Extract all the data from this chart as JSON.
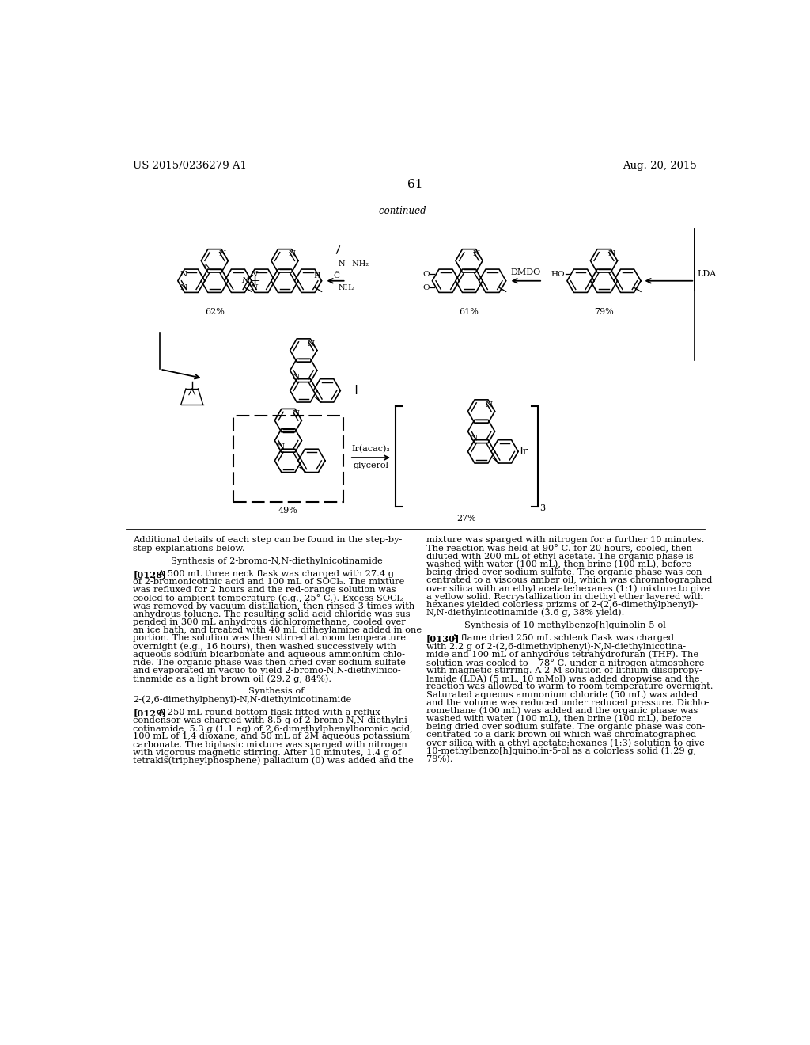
{
  "page_header_left": "US 2015/0236279 A1",
  "page_header_right": "Aug. 20, 2015",
  "page_number": "61",
  "continued_label": "-continued",
  "bg_color": "#ffffff",
  "text_color": "#000000",
  "body_text_left_col": [
    "Additional details of each step can be found in the step-by-",
    "step explanations below.",
    "",
    "Synthesis of 2-bromo-N,N-diethylnicotinamide",
    "",
    "[0128]   A 500 mL three neck flask was charged with 27.4 g",
    "of 2-bromonicotinic acid and 100 mL of SOCl₂. The mixture",
    "was refluxed for 2 hours and the red-orange solution was",
    "cooled to ambient temperature (e.g., 25° C.). Excess SOCl₂",
    "was removed by vacuum distillation, then rinsed 3 times with",
    "anhydrous toluene. The resulting solid acid chloride was sus-",
    "pended in 300 mL anhydrous dichloromethane, cooled over",
    "an ice bath, and treated with 40 mL ditheylamine added in one",
    "portion. The solution was then stirred at room temperature",
    "overnight (e.g., 16 hours), then washed successively with",
    "aqueous sodium bicarbonate and aqueous ammonium chlo-",
    "ride. The organic phase was then dried over sodium sulfate",
    "and evaporated in vacuo to yield 2-bromo-N,N-diethylnico-",
    "tinamide as a light brown oil (29.2 g, 84%).",
    "",
    "Synthesis of",
    "2-(2,6-dimethylphenyl)-N,N-diethylnicotinamide",
    "",
    "[0129]   A 250 mL round bottom flask fitted with a reflux",
    "condensor was charged with 8.5 g of 2-bromo-N,N-diethylni-",
    "cotinamide, 5.3 g (1.1 eq) of 2,6-dimethylphenylboronic acid,",
    "100 mL of 1,4 dioxane, and 50 mL of 2M aqueous potassium",
    "carbonate. The biphasic mixture was sparged with nitrogen",
    "with vigorous magnetic stirring. After 10 minutes, 1.4 g of",
    "tetrakis(tripheylphosphene) palladium (0) was added and the"
  ],
  "body_text_right_col": [
    "mixture was sparged with nitrogen for a further 10 minutes.",
    "The reaction was held at 90° C. for 20 hours, cooled, then",
    "diluted with 200 mL of ethyl acetate. The organic phase is",
    "washed with water (100 mL), then brine (100 mL), before",
    "being dried over sodium sulfate. The organic phase was con-",
    "centrated to a viscous amber oil, which was chromatographed",
    "over silica with an ethyl acetate:hexanes (1:1) mixture to give",
    "a yellow solid. Recrystallization in diethyl ether layered with",
    "hexanes yielded colorless prizms of 2-(2,6-dimethylphenyl)-",
    "N,N-diethylnicotinamide (3.6 g, 38% yield).",
    "",
    "Synthesis of 10-methylbenzo[h]quinolin-5-ol",
    "",
    "[0130]   A flame dried 250 mL schlenk flask was charged",
    "with 2.2 g of 2-(2,6-dimethylphenyl)-N,N-diethylnicotina-",
    "mide and 100 mL of anhydrous tetrahydrofuran (THF). The",
    "solution was cooled to −78° C. under a nitrogen atmosphere",
    "with magnetic stirring. A 2 M solution of lithium diisopropy-",
    "lamide (LDA) (5 mL, 10 mMol) was added dropwise and the",
    "reaction was allowed to warm to room temperature overnight.",
    "Saturated aqueous ammonium chloride (50 mL) was added",
    "and the volume was reduced under reduced pressure. Dichlo-",
    "romethane (100 mL) was added and the organic phase was",
    "washed with water (100 mL), then brine (100 mL), before",
    "being dried over sodium sulfate. The organic phase was con-",
    "centrated to a dark brown oil which was chromatographed",
    "over silica with a ethyl acetate:hexanes (1:3) solution to give",
    "10-methylbenzo[h]quinolin-5-ol as a colorless solid (1.29 g,",
    "79%)."
  ]
}
